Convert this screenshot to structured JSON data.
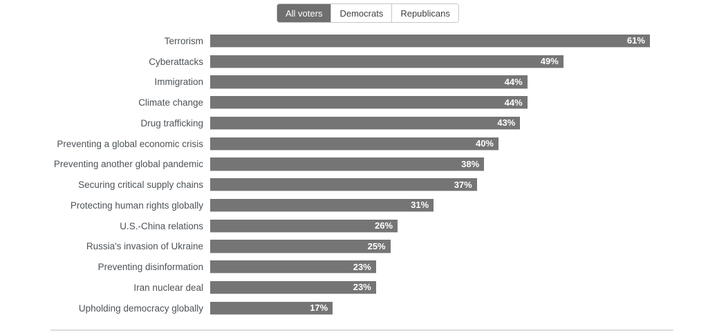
{
  "tabs": [
    {
      "label": "All voters",
      "selected": true
    },
    {
      "label": "Democrats",
      "selected": false
    },
    {
      "label": "Republicans",
      "selected": false
    }
  ],
  "chart_data": {
    "type": "bar",
    "orientation": "horizontal",
    "series_label": "All voters",
    "categories": [
      "Terrorism",
      "Cyberattacks",
      "Immigration",
      "Climate change",
      "Drug trafficking",
      "Preventing a global economic crisis",
      "Preventing another global pandemic",
      "Securing critical supply chains",
      "Protecting human rights globally",
      "U.S.-China relations",
      "Russia's invasion of Ukraine",
      "Preventing disinformation",
      "Iran nuclear deal",
      "Upholding democracy globally"
    ],
    "values": [
      61,
      49,
      44,
      44,
      43,
      40,
      38,
      37,
      31,
      26,
      25,
      23,
      23,
      17
    ],
    "value_suffix": "%",
    "xlim": [
      0,
      70
    ],
    "grid": false,
    "legend_position": "none",
    "bar_color": "#757575",
    "value_label_color": "#ffffff"
  },
  "colors": {
    "selected_tab_bg": "#6f6f6f",
    "selected_tab_text": "#ffffff",
    "tab_text": "#3f3f3f",
    "tab_border": "#c7c7c7",
    "category_text": "#4c5257",
    "divider": "#dcdcdc",
    "background": "#ffffff"
  }
}
